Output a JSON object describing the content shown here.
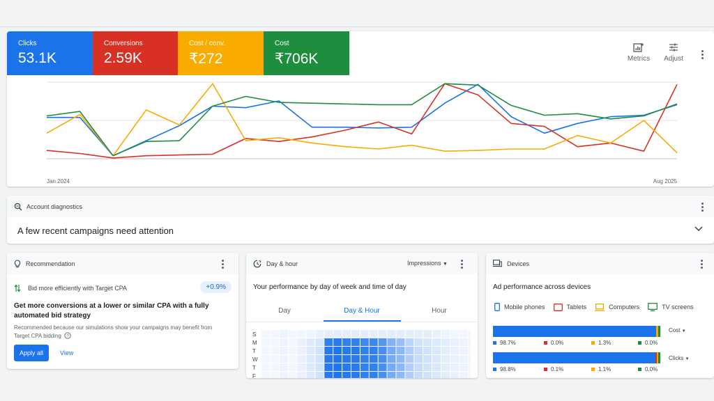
{
  "metrics": {
    "clicks": {
      "label": "Clicks",
      "value": "53.1K",
      "color": "#1a73e8"
    },
    "conversions": {
      "label": "Conversions",
      "value": "2.59K",
      "color": "#d93025"
    },
    "cost_per_conv": {
      "label": "Cost / conv.",
      "value": "₹272",
      "color": "#f9ab00"
    },
    "cost": {
      "label": "Cost",
      "value": "₹706K",
      "color": "#1e8e3e"
    }
  },
  "toolbar": {
    "metrics_label": "Metrics",
    "adjust_label": "Adjust"
  },
  "chart_data": {
    "type": "line",
    "x_start_label": "Jan 2024",
    "x_end_label": "Aug 2025",
    "grid": true,
    "series": [
      {
        "color": "#1a73e8",
        "values": [
          53,
          53,
          2,
          22,
          42,
          68,
          66,
          75,
          40,
          40,
          39,
          40,
          72,
          97,
          54,
          32,
          45,
          54,
          56,
          70
        ]
      },
      {
        "color": "#d93025",
        "values": [
          9,
          5,
          -1,
          2,
          3,
          4,
          25,
          21,
          27,
          36,
          47,
          31,
          98,
          83,
          45,
          41,
          14,
          19,
          8,
          97
        ]
      },
      {
        "color": "#f9ab00",
        "values": [
          32,
          57,
          2,
          63,
          43,
          98,
          22,
          26,
          19,
          14,
          11,
          16,
          8,
          9,
          11,
          11,
          29,
          19,
          49,
          6
        ]
      },
      {
        "color": "#1e8e3e",
        "values": [
          55,
          61,
          2,
          21,
          22,
          68,
          81,
          73,
          72,
          71,
          70,
          70,
          98,
          96,
          69,
          56,
          58,
          51,
          55,
          71
        ]
      }
    ]
  },
  "diagnostics": {
    "title": "Account diagnostics",
    "message": "A few recent campaigns need attention"
  },
  "recommendation": {
    "title": "Recommendation",
    "item_text": "Bid more efficiently with Target CPA",
    "badge": "+0.9%",
    "headline": "Get more conversions at a lower or similar CPA with a fully automated bid strategy",
    "description": "Recommended because our simulations show your campaigns may benefit from Target CPA bidding",
    "apply_label": "Apply all",
    "view_label": "View"
  },
  "dayhour": {
    "title": "Day & hour",
    "dropdown": "Impressions",
    "subtitle": "Your performance by day of week and time of day",
    "tabs": [
      "Day",
      "Day & Hour",
      "Hour"
    ],
    "days": [
      "S",
      "M",
      "T",
      "W",
      "T",
      "F"
    ],
    "heat_rows": [
      [
        0.05,
        0.06,
        0.08,
        0.05,
        0.06,
        0.08,
        0.1,
        0.12,
        0.12,
        0.12,
        0.12,
        0.12,
        0.12,
        0.12,
        0.12,
        0.12,
        0.12,
        0.12,
        0.12,
        0.1,
        0.08,
        0.06,
        0.05,
        0.05
      ],
      [
        0.05,
        0.06,
        0.08,
        0.05,
        0.1,
        0.14,
        0.18,
        0.9,
        0.95,
        0.9,
        0.9,
        0.85,
        0.85,
        0.75,
        0.55,
        0.45,
        0.3,
        0.2,
        0.18,
        0.15,
        0.12,
        0.1,
        0.08,
        0.06
      ],
      [
        0.05,
        0.06,
        0.08,
        0.05,
        0.1,
        0.15,
        0.2,
        0.95,
        0.98,
        0.95,
        0.95,
        0.9,
        0.9,
        0.8,
        0.6,
        0.5,
        0.35,
        0.25,
        0.2,
        0.16,
        0.12,
        0.1,
        0.08,
        0.06
      ],
      [
        0.05,
        0.06,
        0.08,
        0.05,
        0.1,
        0.15,
        0.2,
        0.95,
        0.98,
        0.95,
        0.95,
        0.9,
        0.9,
        0.8,
        0.6,
        0.5,
        0.35,
        0.25,
        0.2,
        0.16,
        0.12,
        0.1,
        0.08,
        0.06
      ],
      [
        0.05,
        0.06,
        0.08,
        0.05,
        0.1,
        0.15,
        0.2,
        0.95,
        0.98,
        0.95,
        0.95,
        0.9,
        0.9,
        0.8,
        0.6,
        0.5,
        0.35,
        0.25,
        0.2,
        0.16,
        0.12,
        0.1,
        0.08,
        0.06
      ],
      [
        0.05,
        0.06,
        0.08,
        0.05,
        0.1,
        0.15,
        0.2,
        0.95,
        0.98,
        0.95,
        0.95,
        0.9,
        0.9,
        0.8,
        0.6,
        0.5,
        0.35,
        0.25,
        0.2,
        0.16,
        0.12,
        0.1,
        0.08,
        0.06
      ]
    ]
  },
  "devices": {
    "title": "Devices",
    "subtitle": "Ad performance across devices",
    "legend": [
      {
        "label": "Mobile phones",
        "color": "#1a73e8"
      },
      {
        "label": "Tablets",
        "color": "#d93025"
      },
      {
        "label": "Computers",
        "color": "#f9ab00"
      },
      {
        "label": "TV screens",
        "color": "#1e8e3e"
      }
    ],
    "bars": [
      {
        "metric": "Cost",
        "shares": [
          98.7,
          0.0,
          1.3,
          0.0
        ],
        "labels": [
          "98.7%",
          "0.0%",
          "1.3%",
          "0.0%"
        ]
      },
      {
        "metric": "Clicks",
        "shares": [
          98.8,
          0.1,
          1.1,
          0.0
        ],
        "labels": [
          "98.8%",
          "0.1%",
          "1.1%",
          "0.0%"
        ]
      }
    ]
  }
}
